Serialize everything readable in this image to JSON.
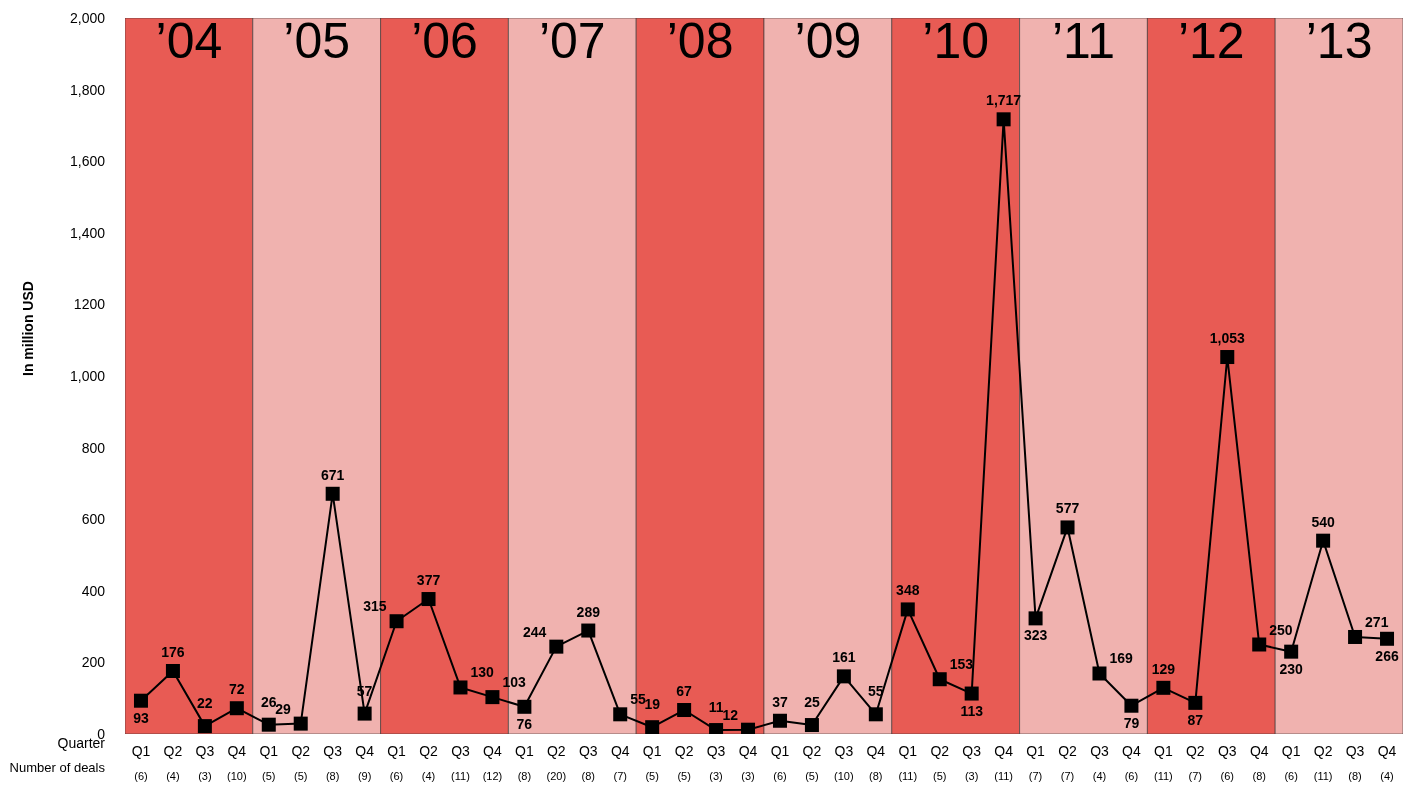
{
  "chart_data": {
    "type": "line",
    "ylabel": "In million USD",
    "xlabel": "Quarter",
    "categories": [
      "Q1",
      "Q2",
      "Q3",
      "Q4",
      "Q1",
      "Q2",
      "Q3",
      "Q4",
      "Q1",
      "Q2",
      "Q3",
      "Q4",
      "Q1",
      "Q2",
      "Q3",
      "Q4",
      "Q1",
      "Q2",
      "Q3",
      "Q4",
      "Q1",
      "Q2",
      "Q3",
      "Q4",
      "Q1",
      "Q2",
      "Q3",
      "Q4",
      "Q1",
      "Q2",
      "Q3",
      "Q4",
      "Q1",
      "Q2",
      "Q3",
      "Q4",
      "Q1",
      "Q2",
      "Q3",
      "Q4"
    ],
    "series": [
      {
        "color": "#000000",
        "values": [
          93,
          176,
          22,
          72,
          26,
          29,
          671,
          57,
          315,
          377,
          130,
          103,
          76,
          244,
          289,
          55,
          19,
          67,
          11,
          12,
          37,
          25,
          161,
          55,
          348,
          153,
          113,
          1717,
          323,
          577,
          169,
          79,
          129,
          87,
          1053,
          250,
          230,
          540,
          271,
          266
        ],
        "value_labels": [
          "93",
          "176",
          "22",
          "72",
          "26",
          "29",
          "671",
          "57",
          "315",
          "377",
          "130",
          "103",
          "76",
          "244",
          "289",
          "55",
          "19",
          "67",
          "11",
          "12",
          "37",
          "25",
          "161",
          "55",
          "348",
          "153",
          "113",
          "1,717",
          "323",
          "577",
          "169",
          "79",
          "129",
          "87",
          "1,053",
          "250",
          "230",
          "540",
          "271",
          "266"
        ]
      }
    ],
    "marker": "square",
    "line_style": "solid",
    "grid": false,
    "legend": false,
    "ylim": [
      0,
      2000
    ],
    "yticks": [
      0,
      200,
      400,
      600,
      800,
      {
        "value": 1000,
        "label": "1,000"
      },
      1200,
      {
        "value": 1400,
        "label": "1,400"
      },
      {
        "value": 1600,
        "label": "1,600"
      },
      {
        "value": 1800,
        "label": "1,800"
      },
      {
        "value": 2000,
        "label": "2,000"
      }
    ],
    "annotations": [
      "’04",
      "’05",
      "’06",
      "’07",
      "’08",
      "’09",
      "’10",
      "’11",
      "’12",
      "’13",
      "Number of deals",
      "(6)",
      "(4)",
      "(3)",
      "(10)",
      "(5)",
      "(5)",
      "(8)",
      "(9)",
      "(6)",
      "(4)",
      "(11)",
      "(12)",
      "(8)",
      "(20)",
      "(8)",
      "(7)",
      "(5)",
      "(5)",
      "(3)",
      "(3)",
      "(6)",
      "(5)",
      "(10)",
      "(8)",
      "(11)",
      "(5)",
      "(3)",
      "(11)",
      "(7)",
      "(7)",
      "(4)",
      "(6)",
      "(11)",
      "(7)",
      "(6)",
      "(8)",
      "(6)",
      "(11)",
      "(8)",
      "(4)"
    ]
  }
}
